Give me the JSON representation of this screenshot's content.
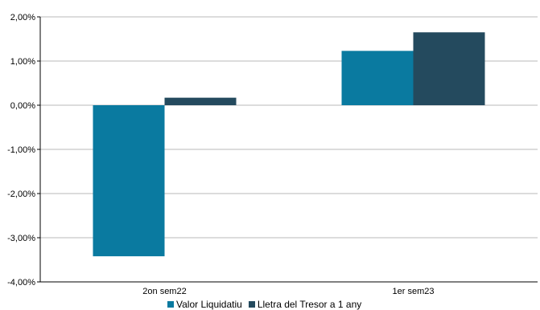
{
  "chart_data": {
    "type": "bar",
    "categories": [
      "2on sem22",
      "1er sem23"
    ],
    "series": [
      {
        "name": "Valor Liquidatiu",
        "values": [
          -3.42,
          1.23
        ],
        "color": "#0a7aa0"
      },
      {
        "name": "Lletra del Tresor a 1 any",
        "values": [
          0.17,
          1.65
        ],
        "color": "#244a5e"
      }
    ],
    "ylim": [
      -4,
      2
    ],
    "yticks": [
      2,
      1,
      0,
      -1,
      -2,
      -3,
      -4
    ],
    "ytick_labels": [
      "2,00%",
      "1,00%",
      "0,00%",
      "-1,00%",
      "-2,00%",
      "-3,00%",
      "-4,00%"
    ],
    "grid": true,
    "legend_position": "bottom",
    "title": "",
    "xlabel": "",
    "ylabel": ""
  }
}
